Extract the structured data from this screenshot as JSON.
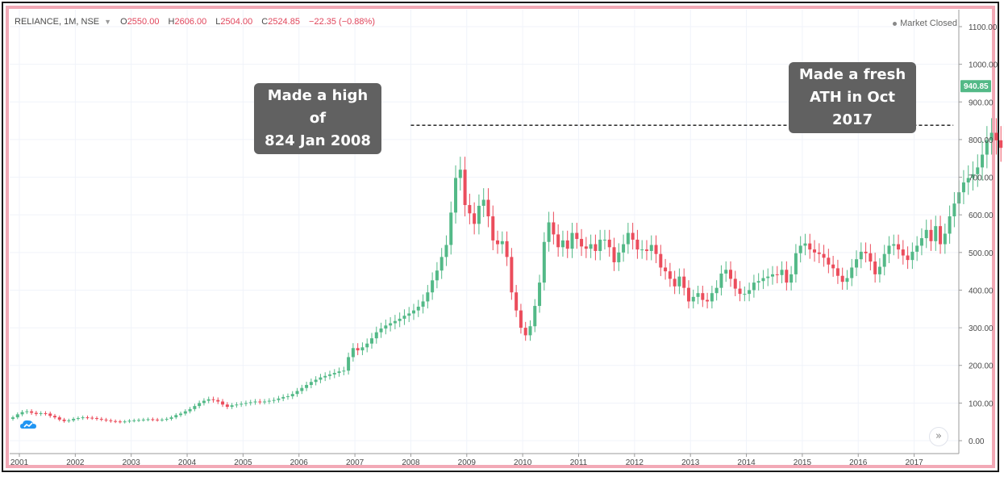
{
  "legend": {
    "symbol": "RELIANCE, 1M, NSE",
    "open_label": "O",
    "open": "2550.00",
    "high_label": "H",
    "high": "2606.00",
    "low_label": "L",
    "low": "2504.00",
    "close_label": "C",
    "close": "2524.85",
    "change": "−22.35 (−0.88%)"
  },
  "status": {
    "text": "Market Closed"
  },
  "callouts": {
    "left": {
      "line1": "Made a high of",
      "line2": "824 Jan 2008"
    },
    "right": {
      "line1": "Made a fresh",
      "line2": "ATH in Oct 2017"
    }
  },
  "price_tag": "940.85",
  "scroll_glyph": "»",
  "colors": {
    "up": "#53b987",
    "down": "#eb4d5c",
    "grid": "#f0f3fa",
    "frame": "#f2a9b6",
    "callout": "#616161",
    "tag": "#53b987"
  },
  "chart_data": {
    "type": "candlestick",
    "title": "",
    "xlabel": "",
    "ylabel": "",
    "x_ticks": [
      "2001",
      "2002",
      "2003",
      "2004",
      "2005",
      "2006",
      "2007",
      "2008",
      "2009",
      "2010",
      "2011",
      "2012",
      "2013",
      "2014",
      "2015",
      "2016",
      "2017"
    ],
    "y_ticks": [
      "0.00",
      "100.00",
      "200.00",
      "300.00",
      "400.00",
      "500.00",
      "600.00",
      "700.00",
      "800.00",
      "900.00",
      "1000.00",
      "1100.00"
    ],
    "ylim": [
      -25,
      1130
    ],
    "grid": true,
    "reference_line": {
      "y": 838,
      "from_year": 2008.0,
      "to_year": 2017.7,
      "style": "dashed"
    },
    "last_price": 940.85,
    "close": [
      62,
      70,
      76,
      78,
      74,
      71,
      73,
      72,
      66,
      62,
      56,
      52,
      54,
      58,
      60,
      62,
      61,
      60,
      58,
      56,
      54,
      52,
      51,
      50,
      51,
      53,
      54,
      55,
      56,
      57,
      56,
      55,
      56,
      58,
      62,
      68,
      72,
      78,
      84,
      92,
      100,
      106,
      110,
      108,
      104,
      96,
      90,
      94,
      96,
      98,
      100,
      102,
      104,
      103,
      104,
      106,
      108,
      112,
      116,
      118,
      124,
      132,
      140,
      148,
      156,
      162,
      168,
      172,
      176,
      180,
      184,
      186,
      222,
      246,
      240,
      248,
      258,
      272,
      288,
      298,
      306,
      312,
      318,
      324,
      332,
      338,
      346,
      356,
      370,
      394,
      426,
      452,
      488,
      520,
      606,
      698,
      720,
      626,
      604,
      576,
      624,
      640,
      596,
      532,
      522,
      530,
      488,
      394,
      346,
      300,
      280,
      304,
      358,
      420,
      528,
      580,
      548,
      514,
      532,
      510,
      552,
      536,
      516,
      510,
      522,
      504,
      534,
      534,
      514,
      474,
      500,
      522,
      552,
      534,
      508,
      508,
      504,
      520,
      496,
      460,
      450,
      430,
      410,
      436,
      406,
      370,
      382,
      392,
      374,
      370,
      392,
      406,
      444,
      454,
      430,
      404,
      390,
      390,
      400,
      420,
      424,
      432,
      436,
      442,
      440,
      454,
      420,
      442,
      498,
      518,
      524,
      508,
      500,
      496,
      486,
      468,
      458,
      438,
      422,
      432,
      460,
      482,
      502,
      498,
      476,
      442,
      462,
      496,
      518,
      522,
      508,
      492,
      480,
      502,
      518,
      538,
      560,
      530,
      570,
      522,
      550,
      596,
      630,
      660,
      686,
      698,
      708,
      726,
      760,
      798,
      818,
      798,
      778,
      842,
      940
    ]
  }
}
